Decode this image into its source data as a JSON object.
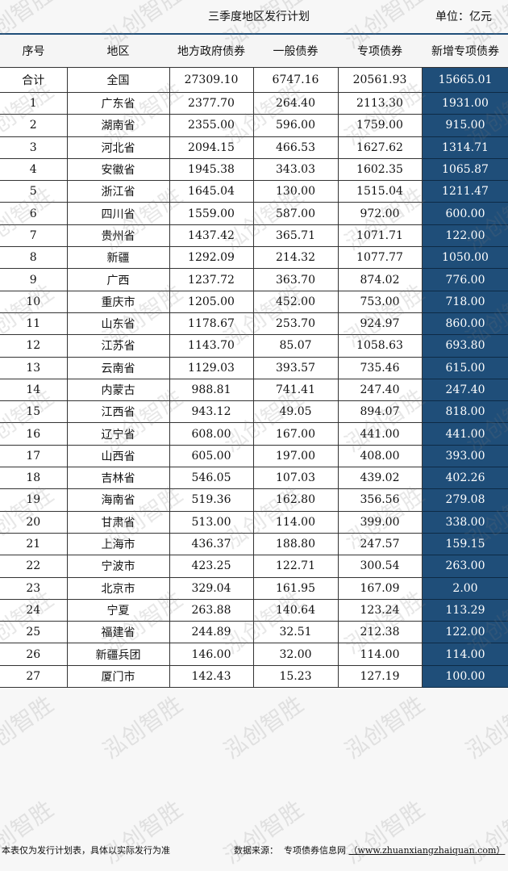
{
  "title": "三季度地区发行计划",
  "unit": "单位：亿元",
  "watermark": "泓创智胜",
  "colors": {
    "highlight_column": "#1f4e79",
    "header_rule": "#1f4e79"
  },
  "columns": [
    "序号",
    "地区",
    "地方政府债券",
    "一般债券",
    "专项债券",
    "新增专项债券"
  ],
  "rows": [
    [
      "合计",
      "全国",
      "27309.10",
      "6747.16",
      "20561.93",
      "15665.01"
    ],
    [
      "1",
      "广东省",
      "2377.70",
      "264.40",
      "2113.30",
      "1931.00"
    ],
    [
      "2",
      "湖南省",
      "2355.00",
      "596.00",
      "1759.00",
      "915.00"
    ],
    [
      "3",
      "河北省",
      "2094.15",
      "466.53",
      "1627.62",
      "1314.71"
    ],
    [
      "4",
      "安徽省",
      "1945.38",
      "343.03",
      "1602.35",
      "1065.87"
    ],
    [
      "5",
      "浙江省",
      "1645.04",
      "130.00",
      "1515.04",
      "1211.47"
    ],
    [
      "6",
      "四川省",
      "1559.00",
      "587.00",
      "972.00",
      "600.00"
    ],
    [
      "7",
      "贵州省",
      "1437.42",
      "365.71",
      "1071.71",
      "122.00"
    ],
    [
      "8",
      "新疆",
      "1292.09",
      "214.32",
      "1077.77",
      "1050.00"
    ],
    [
      "9",
      "广西",
      "1237.72",
      "363.70",
      "874.02",
      "776.00"
    ],
    [
      "10",
      "重庆市",
      "1205.00",
      "452.00",
      "753.00",
      "718.00"
    ],
    [
      "11",
      "山东省",
      "1178.67",
      "253.70",
      "924.97",
      "860.00"
    ],
    [
      "12",
      "江苏省",
      "1143.70",
      "85.07",
      "1058.63",
      "693.80"
    ],
    [
      "13",
      "云南省",
      "1129.03",
      "393.57",
      "735.46",
      "615.00"
    ],
    [
      "14",
      "内蒙古",
      "988.81",
      "741.41",
      "247.40",
      "247.40"
    ],
    [
      "15",
      "江西省",
      "943.12",
      "49.05",
      "894.07",
      "818.00"
    ],
    [
      "16",
      "辽宁省",
      "608.00",
      "167.00",
      "441.00",
      "441.00"
    ],
    [
      "17",
      "山西省",
      "605.00",
      "197.00",
      "408.00",
      "393.00"
    ],
    [
      "18",
      "吉林省",
      "546.05",
      "107.03",
      "439.02",
      "402.26"
    ],
    [
      "19",
      "海南省",
      "519.36",
      "162.80",
      "356.56",
      "279.08"
    ],
    [
      "20",
      "甘肃省",
      "513.00",
      "114.00",
      "399.00",
      "338.00"
    ],
    [
      "21",
      "上海市",
      "436.37",
      "188.80",
      "247.57",
      "159.15"
    ],
    [
      "22",
      "宁波市",
      "423.25",
      "122.71",
      "300.54",
      "263.00"
    ],
    [
      "23",
      "北京市",
      "329.04",
      "161.95",
      "167.09",
      "2.00"
    ],
    [
      "24",
      "宁夏",
      "263.88",
      "140.64",
      "123.24",
      "113.29"
    ],
    [
      "25",
      "福建省",
      "244.89",
      "32.51",
      "212.38",
      "122.00"
    ],
    [
      "26",
      "新疆兵团",
      "146.00",
      "32.00",
      "114.00",
      "114.00"
    ],
    [
      "27",
      "厦门市",
      "142.43",
      "15.23",
      "127.19",
      "100.00"
    ]
  ],
  "footer": {
    "note": "本表仅为发行计划表，具体以实际发行为准",
    "source_label": "数据来源：",
    "source_name": "专项债券信息网",
    "source_url": "（www.zhuanxiangzhaiquan.com）"
  }
}
